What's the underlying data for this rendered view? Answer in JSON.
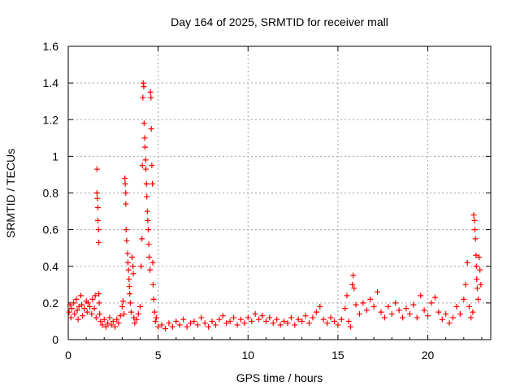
{
  "chart_data": {
    "type": "scatter",
    "title": "Day 164 of 2025, SRMTID for receiver mall",
    "xlabel": "GPS time / hours",
    "ylabel": "SRMTID / TECUs",
    "xlim": [
      0,
      23.5
    ],
    "ylim": [
      0,
      1.6
    ],
    "xticks": [
      0,
      5,
      10,
      15,
      20
    ],
    "xtick_labels": [
      "0",
      "5",
      "10",
      "15",
      "20"
    ],
    "yticks": [
      0,
      0.2,
      0.4,
      0.6,
      0.8,
      1.0,
      1.2,
      1.4,
      1.6
    ],
    "ytick_labels": [
      "0",
      "0.2",
      "0.4",
      "0.6",
      "0.8",
      "1",
      "1.2",
      "1.4",
      "1.6"
    ],
    "grid": true,
    "marker": "+",
    "color": "#ff0000",
    "series": [
      {
        "name": "SRMTID",
        "points": [
          [
            0.05,
            0.15
          ],
          [
            0.1,
            0.19
          ],
          [
            0.15,
            0.12
          ],
          [
            0.2,
            0.17
          ],
          [
            0.3,
            0.2
          ],
          [
            0.35,
            0.14
          ],
          [
            0.45,
            0.22
          ],
          [
            0.5,
            0.16
          ],
          [
            0.55,
            0.11
          ],
          [
            0.6,
            0.18
          ],
          [
            0.7,
            0.24
          ],
          [
            0.75,
            0.19
          ],
          [
            0.8,
            0.13
          ],
          [
            0.9,
            0.17
          ],
          [
            1.0,
            0.21
          ],
          [
            1.05,
            0.15
          ],
          [
            1.1,
            0.2
          ],
          [
            1.2,
            0.18
          ],
          [
            1.3,
            0.14
          ],
          [
            1.35,
            0.22
          ],
          [
            1.45,
            0.17
          ],
          [
            1.5,
            0.24
          ],
          [
            1.55,
            0.12
          ],
          [
            1.6,
            0.93
          ],
          [
            1.6,
            0.8
          ],
          [
            1.62,
            0.77
          ],
          [
            1.65,
            0.72
          ],
          [
            1.65,
            0.65
          ],
          [
            1.68,
            0.6
          ],
          [
            1.7,
            0.53
          ],
          [
            1.7,
            0.25
          ],
          [
            1.72,
            0.2
          ],
          [
            1.75,
            0.14
          ],
          [
            1.8,
            0.1
          ],
          [
            1.9,
            0.08
          ],
          [
            2.0,
            0.11
          ],
          [
            2.1,
            0.07
          ],
          [
            2.2,
            0.09
          ],
          [
            2.3,
            0.12
          ],
          [
            2.4,
            0.08
          ],
          [
            2.5,
            0.1
          ],
          [
            2.6,
            0.07
          ],
          [
            2.7,
            0.11
          ],
          [
            2.8,
            0.09
          ],
          [
            2.9,
            0.13
          ],
          [
            3.0,
            0.18
          ],
          [
            3.05,
            0.21
          ],
          [
            3.1,
            0.14
          ],
          [
            3.15,
            0.88
          ],
          [
            3.17,
            0.85
          ],
          [
            3.2,
            0.8
          ],
          [
            3.2,
            0.74
          ],
          [
            3.22,
            0.6
          ],
          [
            3.25,
            0.54
          ],
          [
            3.3,
            0.47
          ],
          [
            3.32,
            0.42
          ],
          [
            3.35,
            0.38
          ],
          [
            3.38,
            0.33
          ],
          [
            3.4,
            0.29
          ],
          [
            3.42,
            0.25
          ],
          [
            3.45,
            0.2
          ],
          [
            3.5,
            0.15
          ],
          [
            3.55,
            0.45
          ],
          [
            3.6,
            0.4
          ],
          [
            3.62,
            0.36
          ],
          [
            3.65,
            0.12
          ],
          [
            3.7,
            0.09
          ],
          [
            3.8,
            0.11
          ],
          [
            3.9,
            0.14
          ],
          [
            4.0,
            0.18
          ],
          [
            4.05,
            0.4
          ],
          [
            4.1,
            0.55
          ],
          [
            4.12,
            0.95
          ],
          [
            4.15,
            1.32
          ],
          [
            4.17,
            1.4
          ],
          [
            4.2,
            1.38
          ],
          [
            4.22,
            1.18
          ],
          [
            4.25,
            1.1
          ],
          [
            4.27,
            1.05
          ],
          [
            4.3,
            0.98
          ],
          [
            4.32,
            0.93
          ],
          [
            4.35,
            0.85
          ],
          [
            4.37,
            0.78
          ],
          [
            4.4,
            0.7
          ],
          [
            4.42,
            0.65
          ],
          [
            4.45,
            0.6
          ],
          [
            4.48,
            0.52
          ],
          [
            4.5,
            0.45
          ],
          [
            4.55,
            0.38
          ],
          [
            4.57,
            1.35
          ],
          [
            4.6,
            1.32
          ],
          [
            4.62,
            1.15
          ],
          [
            4.65,
            0.95
          ],
          [
            4.68,
            0.85
          ],
          [
            4.7,
            0.42
          ],
          [
            4.72,
            0.3
          ],
          [
            4.75,
            0.22
          ],
          [
            4.8,
            0.15
          ],
          [
            4.85,
            0.1
          ],
          [
            4.9,
            0.12
          ],
          [
            5.0,
            0.07
          ],
          [
            5.2,
            0.08
          ],
          [
            5.4,
            0.06
          ],
          [
            5.6,
            0.09
          ],
          [
            5.8,
            0.07
          ],
          [
            6.0,
            0.1
          ],
          [
            6.2,
            0.08
          ],
          [
            6.4,
            0.11
          ],
          [
            6.6,
            0.07
          ],
          [
            6.8,
            0.09
          ],
          [
            7.0,
            0.1
          ],
          [
            7.2,
            0.08
          ],
          [
            7.4,
            0.12
          ],
          [
            7.6,
            0.09
          ],
          [
            7.8,
            0.07
          ],
          [
            8.0,
            0.1
          ],
          [
            8.2,
            0.08
          ],
          [
            8.4,
            0.11
          ],
          [
            8.6,
            0.13
          ],
          [
            8.8,
            0.09
          ],
          [
            9.0,
            0.1
          ],
          [
            9.2,
            0.12
          ],
          [
            9.4,
            0.08
          ],
          [
            9.6,
            0.11
          ],
          [
            9.8,
            0.09
          ],
          [
            10.0,
            0.12
          ],
          [
            10.2,
            0.1
          ],
          [
            10.4,
            0.14
          ],
          [
            10.6,
            0.11
          ],
          [
            10.8,
            0.13
          ],
          [
            11.0,
            0.1
          ],
          [
            11.2,
            0.12
          ],
          [
            11.4,
            0.09
          ],
          [
            11.6,
            0.11
          ],
          [
            11.8,
            0.08
          ],
          [
            12.0,
            0.1
          ],
          [
            12.2,
            0.09
          ],
          [
            12.4,
            0.12
          ],
          [
            12.6,
            0.08
          ],
          [
            12.8,
            0.11
          ],
          [
            13.0,
            0.1
          ],
          [
            13.2,
            0.13
          ],
          [
            13.4,
            0.09
          ],
          [
            13.6,
            0.12
          ],
          [
            13.8,
            0.15
          ],
          [
            14.0,
            0.18
          ],
          [
            14.2,
            0.11
          ],
          [
            14.4,
            0.09
          ],
          [
            14.6,
            0.12
          ],
          [
            14.8,
            0.1
          ],
          [
            15.0,
            0.08
          ],
          [
            15.2,
            0.11
          ],
          [
            15.4,
            0.17
          ],
          [
            15.5,
            0.24
          ],
          [
            15.6,
            0.1
          ],
          [
            15.7,
            0.07
          ],
          [
            15.8,
            0.3
          ],
          [
            15.85,
            0.35
          ],
          [
            15.9,
            0.28
          ],
          [
            16.0,
            0.19
          ],
          [
            16.2,
            0.14
          ],
          [
            16.4,
            0.2
          ],
          [
            16.6,
            0.16
          ],
          [
            16.8,
            0.22
          ],
          [
            17.0,
            0.18
          ],
          [
            17.2,
            0.26
          ],
          [
            17.4,
            0.15
          ],
          [
            17.6,
            0.12
          ],
          [
            17.8,
            0.18
          ],
          [
            18.0,
            0.14
          ],
          [
            18.2,
            0.2
          ],
          [
            18.4,
            0.16
          ],
          [
            18.6,
            0.12
          ],
          [
            18.8,
            0.17
          ],
          [
            19.0,
            0.14
          ],
          [
            19.2,
            0.19
          ],
          [
            19.4,
            0.12
          ],
          [
            19.6,
            0.24
          ],
          [
            19.8,
            0.16
          ],
          [
            20.0,
            0.13
          ],
          [
            20.2,
            0.2
          ],
          [
            20.4,
            0.23
          ],
          [
            20.6,
            0.15
          ],
          [
            20.8,
            0.11
          ],
          [
            21.0,
            0.14
          ],
          [
            21.2,
            0.09
          ],
          [
            21.4,
            0.12
          ],
          [
            21.6,
            0.18
          ],
          [
            21.8,
            0.14
          ],
          [
            22.0,
            0.22
          ],
          [
            22.1,
            0.3
          ],
          [
            22.2,
            0.42
          ],
          [
            22.3,
            0.18
          ],
          [
            22.4,
            0.12
          ],
          [
            22.5,
            0.15
          ],
          [
            22.55,
            0.68
          ],
          [
            22.6,
            0.65
          ],
          [
            22.62,
            0.6
          ],
          [
            22.65,
            0.55
          ],
          [
            22.68,
            0.46
          ],
          [
            22.7,
            0.4
          ],
          [
            22.72,
            0.33
          ],
          [
            22.75,
            0.28
          ],
          [
            22.8,
            0.22
          ],
          [
            22.85,
            0.45
          ],
          [
            22.9,
            0.38
          ],
          [
            22.95,
            0.3
          ]
        ]
      }
    ]
  }
}
